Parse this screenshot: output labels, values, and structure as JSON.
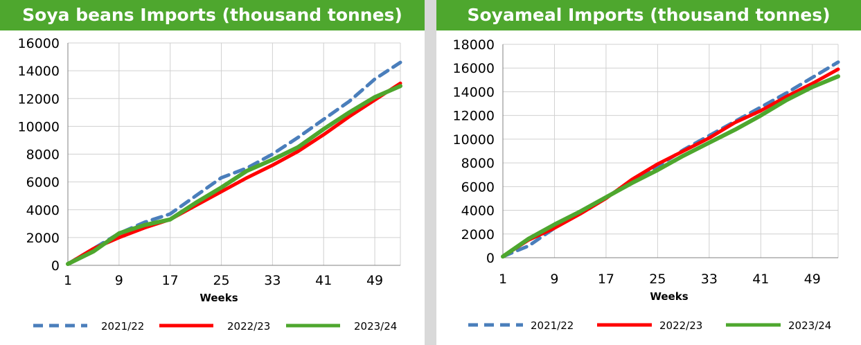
{
  "chart_data": [
    {
      "type": "line",
      "title": "Soya beans Imports (thousand tonnes)",
      "xlabel": "Weeks",
      "ylabel": "",
      "xlim": [
        1,
        53
      ],
      "ylim": [
        0,
        16000
      ],
      "x_ticks": [
        1,
        9,
        17,
        25,
        33,
        41,
        49
      ],
      "y_ticks": [
        0,
        2000,
        4000,
        6000,
        8000,
        10000,
        12000,
        14000,
        16000
      ],
      "grid": "horizontal and vertical",
      "legend_position": "bottom",
      "x": [
        1,
        5,
        9,
        13,
        17,
        21,
        25,
        29,
        33,
        37,
        41,
        45,
        49,
        53
      ],
      "series": [
        {
          "name": "2021/22",
          "color": "#4a7ebb",
          "dash": "dashed",
          "values": [
            100,
            1200,
            2300,
            3100,
            3700,
            5000,
            6300,
            7000,
            8000,
            9200,
            10500,
            11800,
            13400,
            14600
          ]
        },
        {
          "name": "2022/23",
          "color": "#ff0000",
          "dash": "solid",
          "values": [
            100,
            1200,
            2000,
            2700,
            3300,
            4300,
            5300,
            6300,
            7200,
            8200,
            9400,
            10700,
            11900,
            13100
          ]
        },
        {
          "name": "2023/24",
          "color": "#4ea72e",
          "dash": "solid",
          "values": [
            100,
            1000,
            2300,
            2900,
            3300,
            4500,
            5600,
            6800,
            7600,
            8500,
            9800,
            11000,
            12100,
            12900
          ]
        }
      ]
    },
    {
      "type": "line",
      "title": "Soyameal Imports (thousand tonnes)",
      "xlabel": "Weeks",
      "ylabel": "",
      "xlim": [
        1,
        53
      ],
      "ylim": [
        0,
        18000
      ],
      "x_ticks": [
        1,
        9,
        17,
        25,
        33,
        41,
        49
      ],
      "y_ticks": [
        0,
        2000,
        4000,
        6000,
        8000,
        10000,
        12000,
        14000,
        16000,
        18000
      ],
      "grid": "horizontal and vertical",
      "legend_position": "bottom",
      "x": [
        1,
        5,
        9,
        13,
        17,
        21,
        25,
        29,
        33,
        37,
        41,
        45,
        49,
        53
      ],
      "series": [
        {
          "name": "2021/22",
          "color": "#4a7ebb",
          "dash": "dashed",
          "values": [
            100,
            1000,
            2500,
            3800,
            5100,
            6400,
            7700,
            9100,
            10300,
            11500,
            12700,
            13900,
            15200,
            16500
          ]
        },
        {
          "name": "2022/23",
          "color": "#ff0000",
          "dash": "solid",
          "values": [
            100,
            1500,
            2500,
            3700,
            5000,
            6600,
            7900,
            9000,
            10100,
            11400,
            12400,
            13600,
            14700,
            15900
          ]
        },
        {
          "name": "2023/24",
          "color": "#4ea72e",
          "dash": "solid",
          "values": [
            100,
            1600,
            2800,
            3900,
            5100,
            6300,
            7400,
            8600,
            9700,
            10800,
            12000,
            13300,
            14400,
            15300
          ]
        }
      ]
    }
  ]
}
